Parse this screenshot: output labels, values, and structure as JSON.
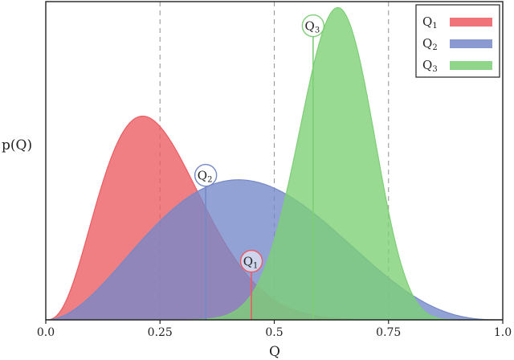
{
  "chart_data": {
    "type": "area",
    "title": "",
    "xlabel": "Q",
    "ylabel": "p(Q)",
    "xlim": [
      0.0,
      1.0
    ],
    "ylim": [
      0,
      1.0
    ],
    "x_ticks": [
      "0.0",
      "0.25",
      "0.5",
      "0.75",
      "1.0"
    ],
    "x_tick_values": [
      0.0,
      0.25,
      0.5,
      0.75,
      1.0
    ],
    "vertical_dashed_lines_at": [
      0.25,
      0.5,
      0.75
    ],
    "grid": false,
    "legend_placement": "top-right",
    "series": [
      {
        "name": "Q1",
        "label_main": "Q",
        "label_sub": "1",
        "color": "#ec5b61",
        "distribution": "beta",
        "alpha_param": 3.8,
        "beta_param": 11.4,
        "mode_x": 0.21,
        "peak_density": 0.64,
        "marker_x": 0.45,
        "marker_density": 0.15
      },
      {
        "name": "Q2",
        "label_main": "Q",
        "label_sub": "2",
        "color": "#7588c8",
        "distribution": "beta",
        "alpha_param": 3.1,
        "beta_param": 3.88,
        "mode_x": 0.42,
        "peak_density": 0.44,
        "marker_x": 0.35,
        "marker_density": 0.42
      },
      {
        "name": "Q3",
        "label_main": "Q",
        "label_sub": "3",
        "color": "#7ccf75",
        "distribution": "beta",
        "alpha_param": 23.3,
        "beta_param": 13.6,
        "mode_x": 0.635,
        "peak_density": 0.98,
        "marker_x": 0.585,
        "marker_density": 0.89
      }
    ]
  }
}
